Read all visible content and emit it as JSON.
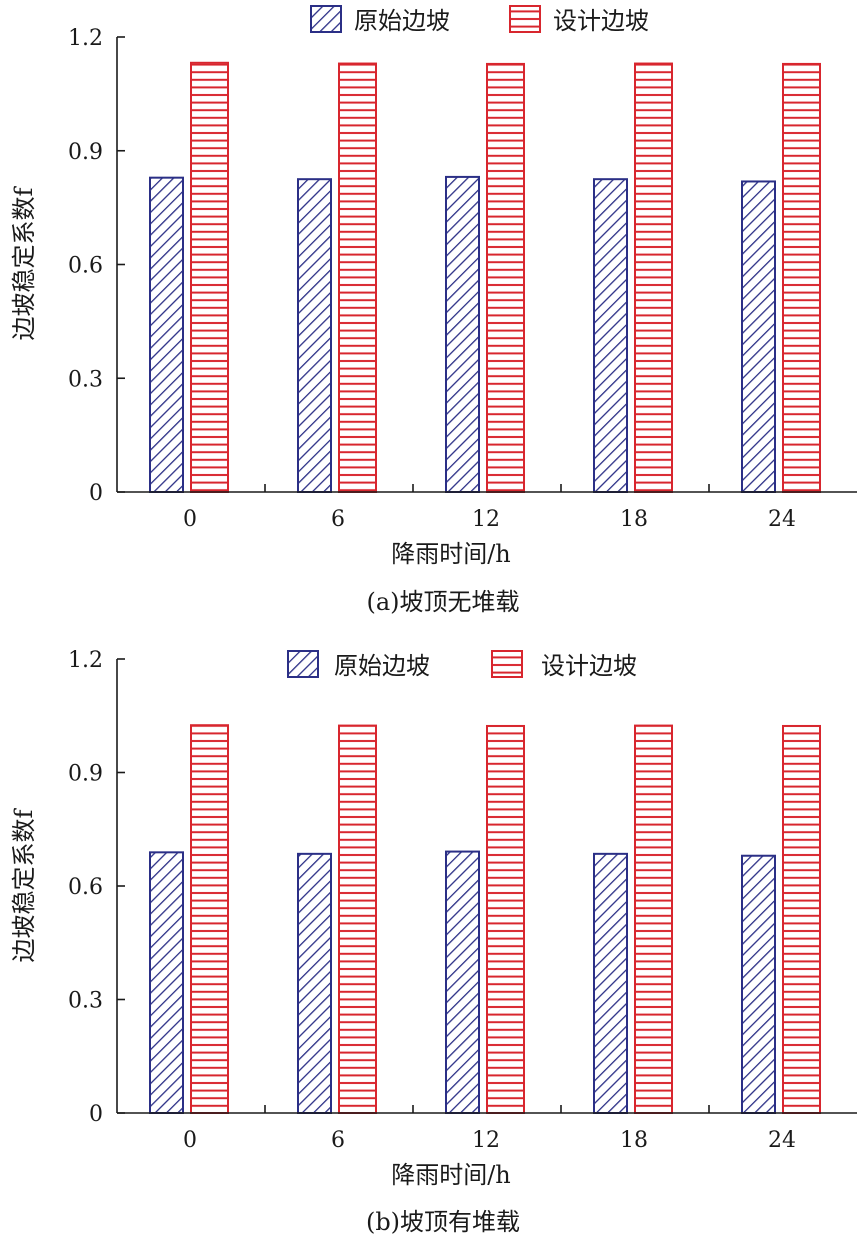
{
  "chart_data": [
    {
      "type": "bar",
      "caption": "(a)坡顶无堆载",
      "xlabel": "降雨时间/h",
      "ylabel": "边坡稳定系数f",
      "categories": [
        "0",
        "6",
        "12",
        "18",
        "24"
      ],
      "ylim": [
        0,
        1.2
      ],
      "yticks": [
        "0",
        "0.3",
        "0.6",
        "0.9",
        "1.2"
      ],
      "legend_position": "top",
      "series": [
        {
          "name": "原始边坡",
          "values": [
            0.829,
            0.825,
            0.831,
            0.825,
            0.819
          ],
          "color": "#2b2f86",
          "pattern": "diagonal-hatch"
        },
        {
          "name": "设计边坡",
          "values": [
            1.132,
            1.13,
            1.129,
            1.13,
            1.129
          ],
          "color": "#d8262e",
          "pattern": "horizontal-hatch"
        }
      ]
    },
    {
      "type": "bar",
      "caption": "(b)坡顶有堆载",
      "xlabel": "降雨时间/h",
      "ylabel": "边坡稳定系数f",
      "categories": [
        "0",
        "6",
        "12",
        "18",
        "24"
      ],
      "ylim": [
        0,
        1.2
      ],
      "yticks": [
        "0",
        "0.3",
        "0.6",
        "0.9",
        "1.2"
      ],
      "legend_position": "top",
      "series": [
        {
          "name": "原始边坡",
          "values": [
            0.689,
            0.685,
            0.691,
            0.685,
            0.68
          ],
          "color": "#2b2f86",
          "pattern": "diagonal-hatch"
        },
        {
          "name": "设计边坡",
          "values": [
            1.025,
            1.024,
            1.023,
            1.024,
            1.023
          ],
          "color": "#d8262e",
          "pattern": "horizontal-hatch"
        }
      ]
    }
  ]
}
